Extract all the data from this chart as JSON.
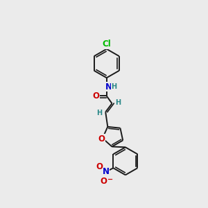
{
  "bg_color": "#ebebeb",
  "bond_color": "#1a1a1a",
  "atom_colors": {
    "Cl": "#00bb00",
    "N": "#0000cc",
    "O": "#cc0000",
    "H": "#2a8888",
    "C": "#1a1a1a"
  },
  "font_size_atom": 8.5,
  "font_size_small": 7.0,
  "font_size_charge": 7.0
}
